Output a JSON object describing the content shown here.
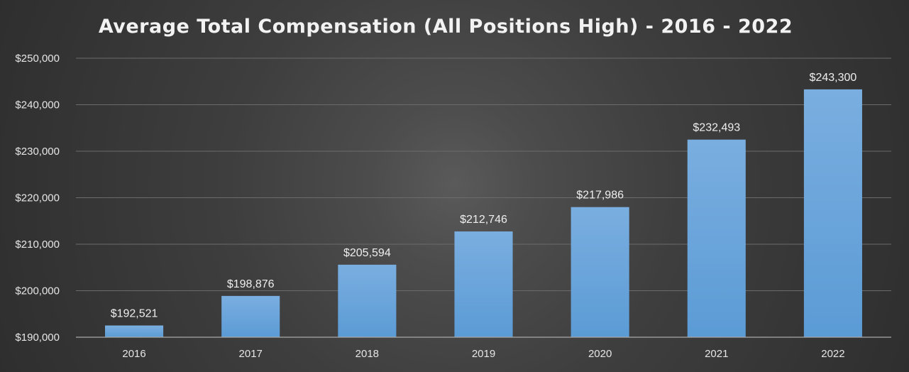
{
  "chart_data": {
    "type": "bar",
    "title": "Average Total Compensation (All Positions High) - 2016 - 2022",
    "categories": [
      "2016",
      "2017",
      "2018",
      "2019",
      "2020",
      "2021",
      "2022"
    ],
    "values": [
      192521,
      198876,
      205594,
      212746,
      217986,
      232493,
      243300
    ],
    "data_labels": [
      "$192,521",
      "$198,876",
      "$205,594",
      "$212,746",
      "$217,986",
      "$232,493",
      "$243,300"
    ],
    "y_ticks": [
      190000,
      200000,
      210000,
      220000,
      230000,
      240000,
      250000
    ],
    "y_tick_labels": [
      "$190,000",
      "$200,000",
      "$210,000",
      "$220,000",
      "$230,000",
      "$240,000",
      "$250,000"
    ],
    "ylim": [
      190000,
      250000
    ],
    "grid": true,
    "legend": "none",
    "colors": {
      "bar": "#5b9bd5",
      "bar_top": "#7aaee0",
      "background": "#3a3a3a",
      "text": "#eeeeee"
    }
  }
}
